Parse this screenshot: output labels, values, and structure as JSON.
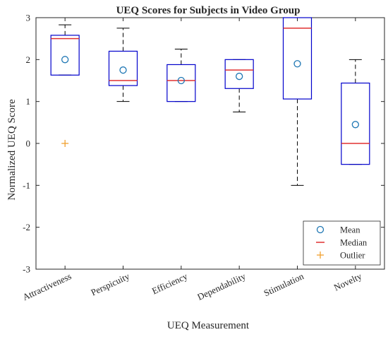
{
  "chart_data": {
    "type": "box",
    "title": "UEQ Scores for Subjects in Video Group",
    "xlabel": "UEQ Measurement",
    "ylabel": "Normalized UEQ Score",
    "ylim": [
      -3,
      3
    ],
    "yticks": [
      "3",
      "2",
      "1",
      "0",
      "-1",
      "-2",
      "-3"
    ],
    "ytick_values": [
      3,
      2,
      1,
      0,
      -1,
      -2,
      -3
    ],
    "categories": [
      "Attractiveness",
      "Perspicuity",
      "Efficiency",
      "Dependability",
      "Stimulation",
      "Novelty"
    ],
    "boxes": [
      {
        "category": "Attractiveness",
        "q1": 1.63,
        "median": 2.5,
        "q3": 2.58,
        "whisker_low": 1.63,
        "whisker_high": 2.83,
        "mean": 2.0,
        "outliers": [
          0
        ]
      },
      {
        "category": "Perspicuity",
        "q1": 1.38,
        "median": 1.5,
        "q3": 2.2,
        "whisker_low": 1.0,
        "whisker_high": 2.75,
        "mean": 1.75,
        "outliers": []
      },
      {
        "category": "Efficiency",
        "q1": 1.0,
        "median": 1.5,
        "q3": 1.88,
        "whisker_low": 1.0,
        "whisker_high": 2.25,
        "mean": 1.5,
        "outliers": []
      },
      {
        "category": "Dependability",
        "q1": 1.31,
        "median": 1.75,
        "q3": 2.0,
        "whisker_low": 0.75,
        "whisker_high": 2.0,
        "mean": 1.6,
        "outliers": []
      },
      {
        "category": "Stimulation",
        "q1": 1.06,
        "median": 2.75,
        "q3": 3.0,
        "whisker_low": -1.0,
        "whisker_high": 3.0,
        "mean": 1.9,
        "outliers": []
      },
      {
        "category": "Novelty",
        "q1": -0.5,
        "median": 0.0,
        "q3": 1.44,
        "whisker_low": -0.5,
        "whisker_high": 2.0,
        "mean": 0.45,
        "outliers": []
      }
    ],
    "legend": {
      "placement": "bottom-right",
      "entries": [
        "Mean",
        "Median",
        "Outlier"
      ]
    },
    "grid": false,
    "colors": {
      "box": "#0000cc",
      "median": "#e03030",
      "mean": "#1f77b4",
      "outlier": "#f0a030",
      "whisker": "#000000",
      "axis": "#262626"
    }
  }
}
